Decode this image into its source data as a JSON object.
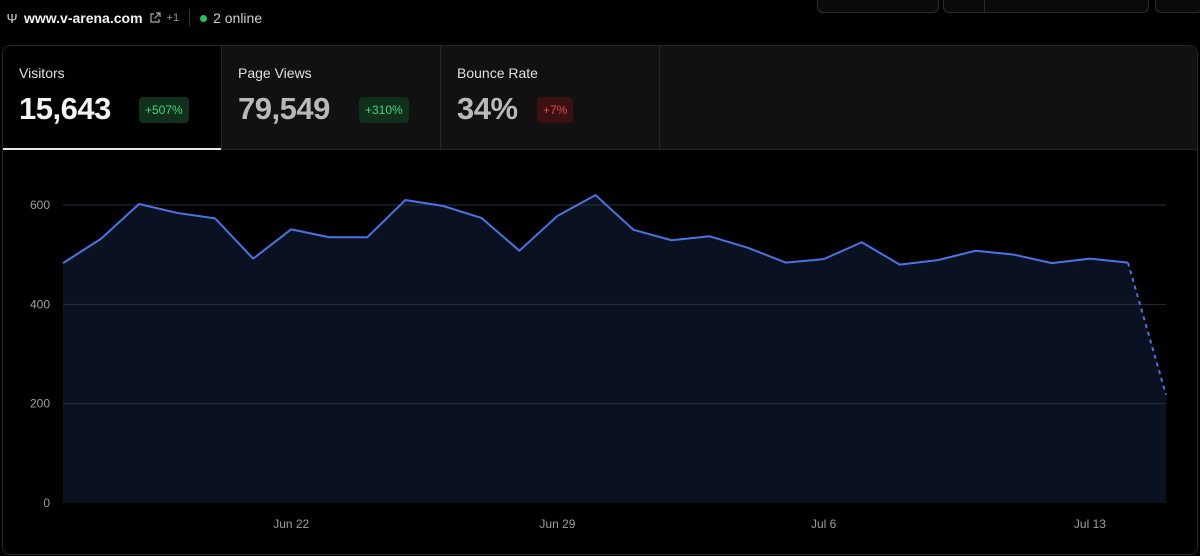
{
  "header": {
    "domain": "www.v-arena.com",
    "extra_sites": "+1",
    "online": "2 online"
  },
  "metrics": [
    {
      "label": "Visitors",
      "value": "15,643",
      "change": "+507%",
      "trend": "up"
    },
    {
      "label": "Page Views",
      "value": "79,549",
      "change": "+310%",
      "trend": "up"
    },
    {
      "label": "Bounce Rate",
      "value": "34%",
      "change": "+7%",
      "trend": "down"
    }
  ],
  "colors": {
    "line": "#4a74e6",
    "area": "#0a1120",
    "grid": "#2a2f38",
    "up_text": "#3fd77a",
    "down_text": "#e5484d"
  },
  "chart_data": {
    "type": "line",
    "ylim": [
      0,
      600
    ],
    "yticks": [
      "0",
      "200",
      "400",
      "600"
    ],
    "xticks": [
      {
        "label": "Jun 22",
        "index": 6
      },
      {
        "label": "Jun 29",
        "index": 13
      },
      {
        "label": "Jul 6",
        "index": 20
      },
      {
        "label": "Jul 13",
        "index": 27
      }
    ],
    "values": [
      483,
      532,
      602,
      584,
      573,
      492,
      551,
      535,
      535,
      610,
      598,
      574,
      508,
      578,
      620,
      550,
      529,
      537,
      514,
      484,
      491,
      525,
      480,
      489,
      508,
      500,
      483,
      492,
      484,
      218
    ],
    "partial_last": true,
    "grid": true
  }
}
